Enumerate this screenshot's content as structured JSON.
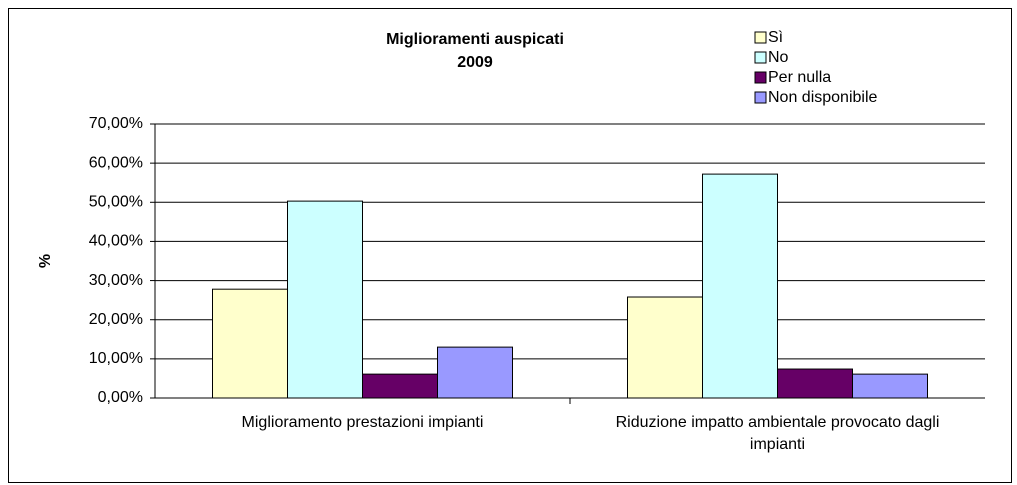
{
  "chart_data": {
    "type": "bar",
    "title": "Miglioramenti auspicati",
    "subtitle": "2009",
    "y_label": "%",
    "categories": [
      "Miglioramento prestazioni impianti",
      "Riduzione impatto ambientale provocato dagli impianti"
    ],
    "series": [
      {
        "name": "Sì",
        "color": "#ffffcc",
        "values": [
          27.8,
          25.8
        ]
      },
      {
        "name": "No",
        "color": "#ccffff",
        "values": [
          50.3,
          57.2
        ]
      },
      {
        "name": "Per nulla",
        "color": "#660066",
        "values": [
          6.1,
          7.4
        ]
      },
      {
        "name": "Non disponibile",
        "color": "#9999ff",
        "values": [
          13.0,
          6.1
        ]
      }
    ],
    "ylim": [
      0,
      70
    ],
    "yticks": [
      {
        "value": 0,
        "label": "0,00%"
      },
      {
        "value": 10,
        "label": "10,00%"
      },
      {
        "value": 20,
        "label": "20,00%"
      },
      {
        "value": 30,
        "label": "30,00%"
      },
      {
        "value": 40,
        "label": "40,00%"
      },
      {
        "value": 50,
        "label": "50,00%"
      },
      {
        "value": 60,
        "label": "60,00%"
      },
      {
        "value": 70,
        "label": "70,00%"
      }
    ],
    "grid": true,
    "legend": "top-right"
  }
}
